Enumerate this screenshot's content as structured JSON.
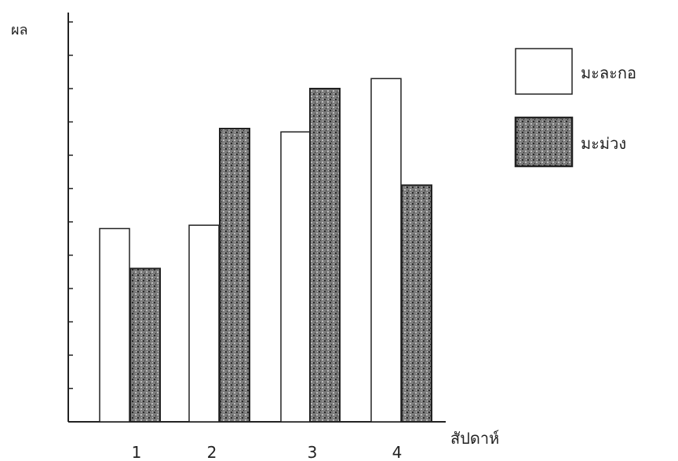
{
  "chart_data": {
    "type": "bar",
    "ylabel": "ผล",
    "xlabel": "สัปดาห์",
    "categories": [
      "1",
      "2",
      "3",
      "4"
    ],
    "series": [
      {
        "name": "มะละกอ",
        "values": [
          5.8,
          5.9,
          8.7,
          10.3
        ]
      },
      {
        "name": "มะม่วง",
        "values": [
          4.6,
          8.8,
          10.0,
          7.1
        ]
      }
    ],
    "ylim": [
      0,
      12
    ],
    "grid": false,
    "legend_position": "top-right",
    "colors": {
      "series_0": "#ffffff",
      "series_1": "#6a6a6a",
      "axis": "#222222"
    }
  }
}
